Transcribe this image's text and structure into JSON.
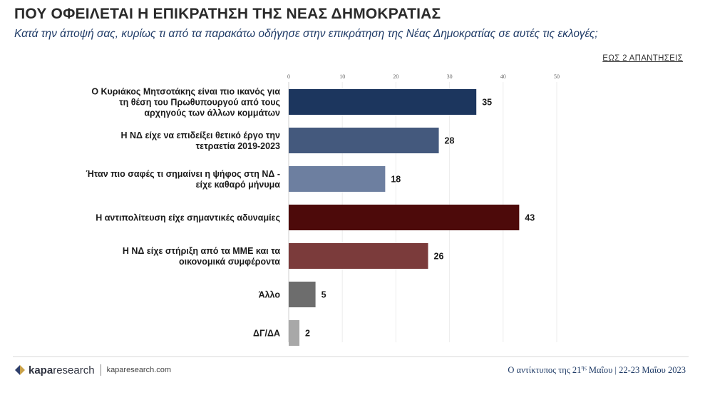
{
  "header": {
    "title": "ΠΟΥ ΟΦΕΙΛΕΤΑΙ Η ΕΠΙΚΡΑΤΗΣΗ ΤΗΣ ΝΕΑΣ ΔΗΜΟΚΡΑΤΙΑΣ",
    "subtitle": "Κατά την άποψή σας, κυρίως τι από τα παρακάτω οδήγησε στην επικράτηση της Νέας Δημοκρατίας σε αυτές τις εκλογές;",
    "note": "ΕΩΣ 2 ΑΠΑΝΤΗΣΕΙΣ"
  },
  "chart_data": {
    "type": "bar",
    "orientation": "horizontal",
    "title": "ΠΟΥ ΟΦΕΙΛΕΤΑΙ Η ΕΠΙΚΡΑΤΗΣΗ ΤΗΣ ΝΕΑΣ ΔΗΜΟΚΡΑΤΙΑΣ",
    "xlim": [
      0,
      50
    ],
    "ticks": [
      0,
      10,
      20,
      30,
      40,
      50
    ],
    "categories": [
      [
        "Ο Κυριάκος Μητσοτάκης είναι πιο ικανός για",
        "τη θέση του Πρωθυπουργού από τους",
        "αρχηγούς των άλλων κομμάτων"
      ],
      [
        "Η ΝΔ είχε να επιδείξει θετικό έργο την",
        "τετραετία 2019-2023"
      ],
      [
        "Ήταν πιο σαφές τι σημαίνει η ψήφος στη ΝΔ -",
        "είχε καθαρό μήνυμα"
      ],
      [
        "Η αντιπολίτευση είχε σημαντικές αδυναμίες"
      ],
      [
        "Η ΝΔ είχε στήριξη από τα ΜΜΕ και τα",
        "οικονομικά συμφέροντα"
      ],
      [
        "Άλλο"
      ],
      [
        "ΔΓ/ΔΑ"
      ]
    ],
    "values": [
      35,
      28,
      18,
      43,
      26,
      5,
      2
    ],
    "colors": [
      "#1c365e",
      "#44597d",
      "#6d7fa0",
      "#4d0a0a",
      "#7b3b3b",
      "#6d6d6d",
      "#a8a8a8"
    ]
  },
  "footer": {
    "brand_bold": "kapa",
    "brand_light": "research",
    "site": "kaparesearch.com",
    "source_prefix": "Ο αντίκτυπος της 21",
    "source_sup": "ης",
    "source_suffix": " Μαΐου | 22-23 Μαΐου 2023"
  }
}
